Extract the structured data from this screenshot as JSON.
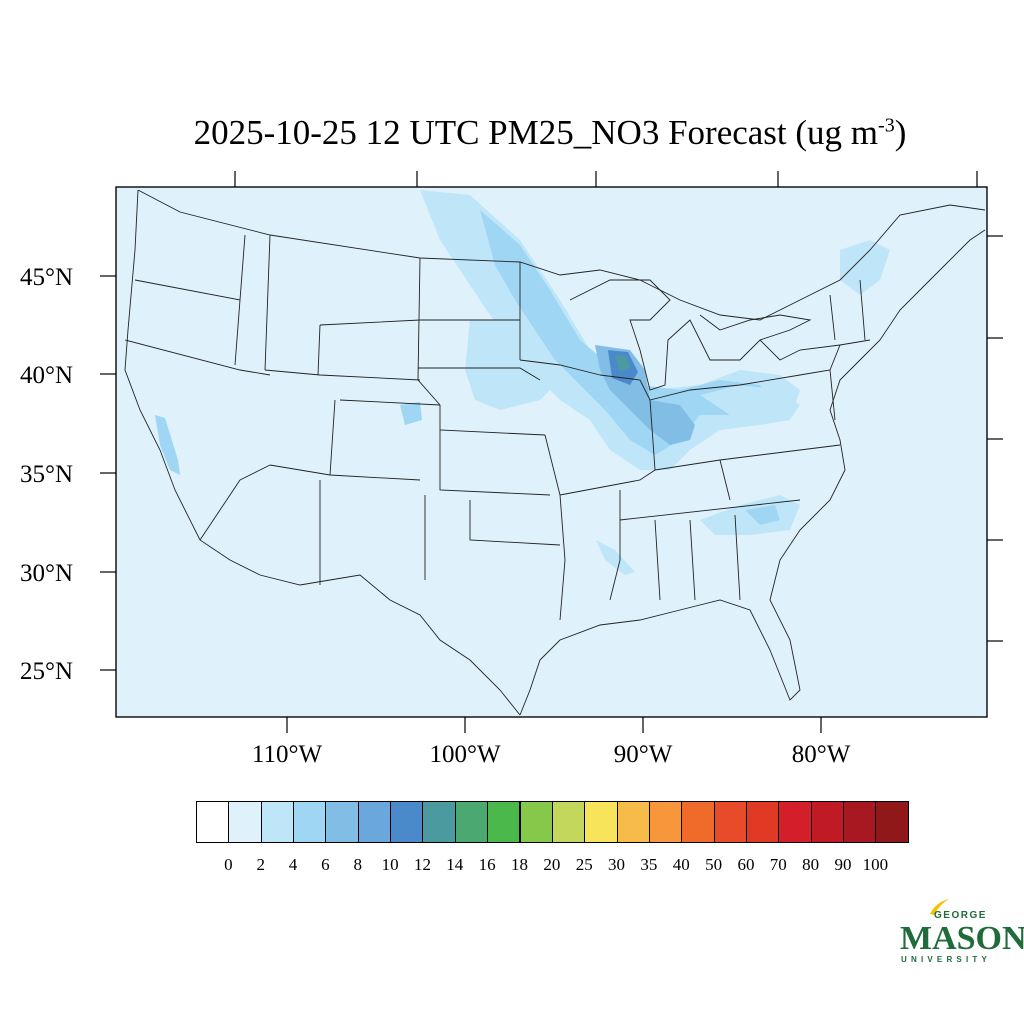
{
  "title": {
    "main": "2025-10-25 12 UTC PM25_NO3 Forecast (ug m",
    "sup": "-3",
    "close": ")"
  },
  "map": {
    "lat_labels": [
      "45°N",
      "40°N",
      "35°N",
      "30°N",
      "25°N"
    ],
    "lon_labels": [
      "110°W",
      "100°W",
      "90°W",
      "80°W"
    ],
    "background_color": "#dff1fb"
  },
  "colorbar": {
    "colors": [
      "#ffffff",
      "#dff1fb",
      "#bfe6f8",
      "#9fd6f3",
      "#82bde5",
      "#69a7dc",
      "#4a8acb",
      "#4a9aa0",
      "#4aa870",
      "#4ab84a",
      "#85c84a",
      "#c3d85a",
      "#f7e45a",
      "#f7bb4a",
      "#f7963a",
      "#f06a2a",
      "#e84b2a",
      "#e03a25",
      "#d41f2a",
      "#c01a25",
      "#a81820",
      "#901818"
    ],
    "labels": [
      "0",
      "2",
      "4",
      "6",
      "8",
      "10",
      "12",
      "14",
      "16",
      "18",
      "20",
      "25",
      "30",
      "35",
      "40",
      "50",
      "60",
      "70",
      "80",
      "90",
      "100"
    ]
  },
  "logo": {
    "line1": "GEORGE",
    "line2": "MASON",
    "line3": "UNIVERSITY",
    "color": "#1f6b3a",
    "accent": "#f2c300"
  }
}
